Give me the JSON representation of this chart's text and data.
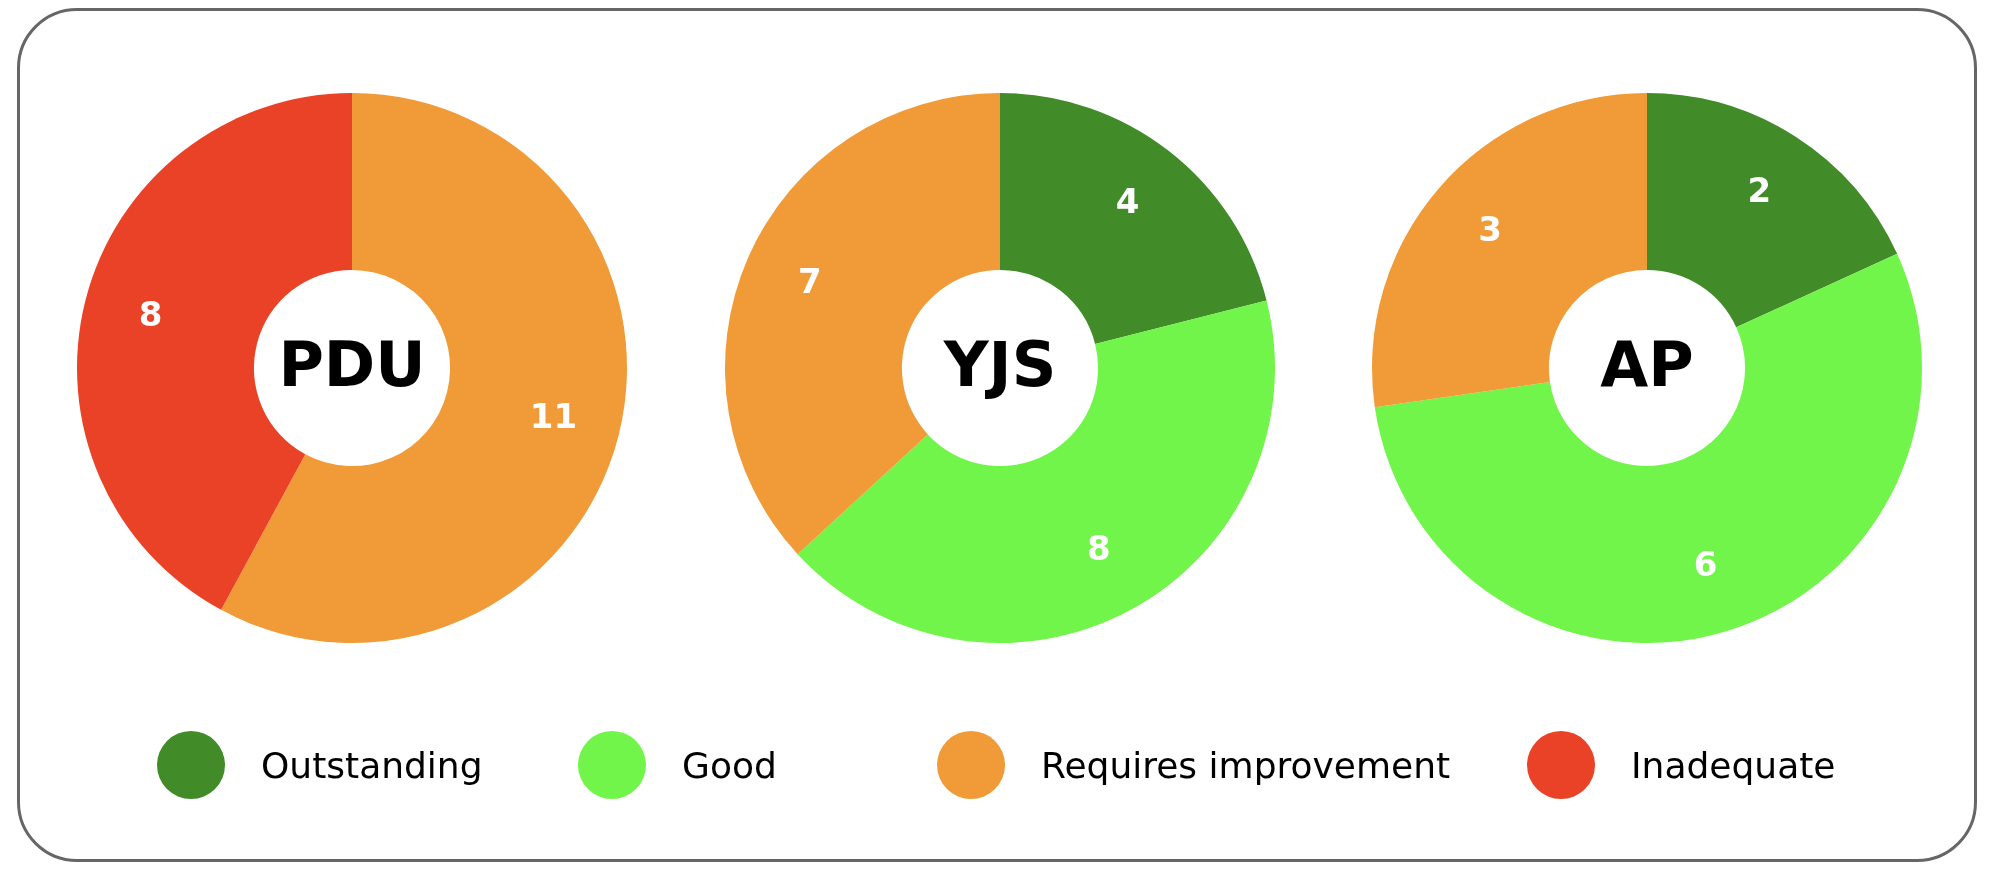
{
  "chart_data": [
    {
      "type": "donut",
      "title": "PDU",
      "categories": [
        "Outstanding",
        "Good",
        "Requires improvement",
        "Inadequate"
      ],
      "values": [
        0,
        0,
        11,
        8
      ],
      "colors": [
        "#418b28",
        "#72f54a",
        "#f09a38",
        "#ea4226"
      ],
      "value_labels": [
        null,
        null,
        "11",
        "8"
      ],
      "legend": "bottom"
    },
    {
      "type": "donut",
      "title": "YJS",
      "categories": [
        null,
        null,
        null,
        null
      ],
      "values": [
        4,
        8,
        7,
        0
      ],
      "colors": [
        "#418b28",
        "#72f54a",
        "#f09a38",
        "#ea4226"
      ],
      "value_labels": [
        "4",
        "8",
        "7",
        null
      ]
    },
    {
      "type": "donut",
      "title": "AP",
      "categories": [
        null,
        null,
        null,
        null
      ],
      "values": [
        2,
        6,
        3,
        0
      ],
      "colors": [
        "#418b28",
        "#72f54a",
        "#f09a38",
        "#ea4226"
      ],
      "value_labels": [
        "2",
        "6",
        "3",
        null
      ]
    }
  ]
}
